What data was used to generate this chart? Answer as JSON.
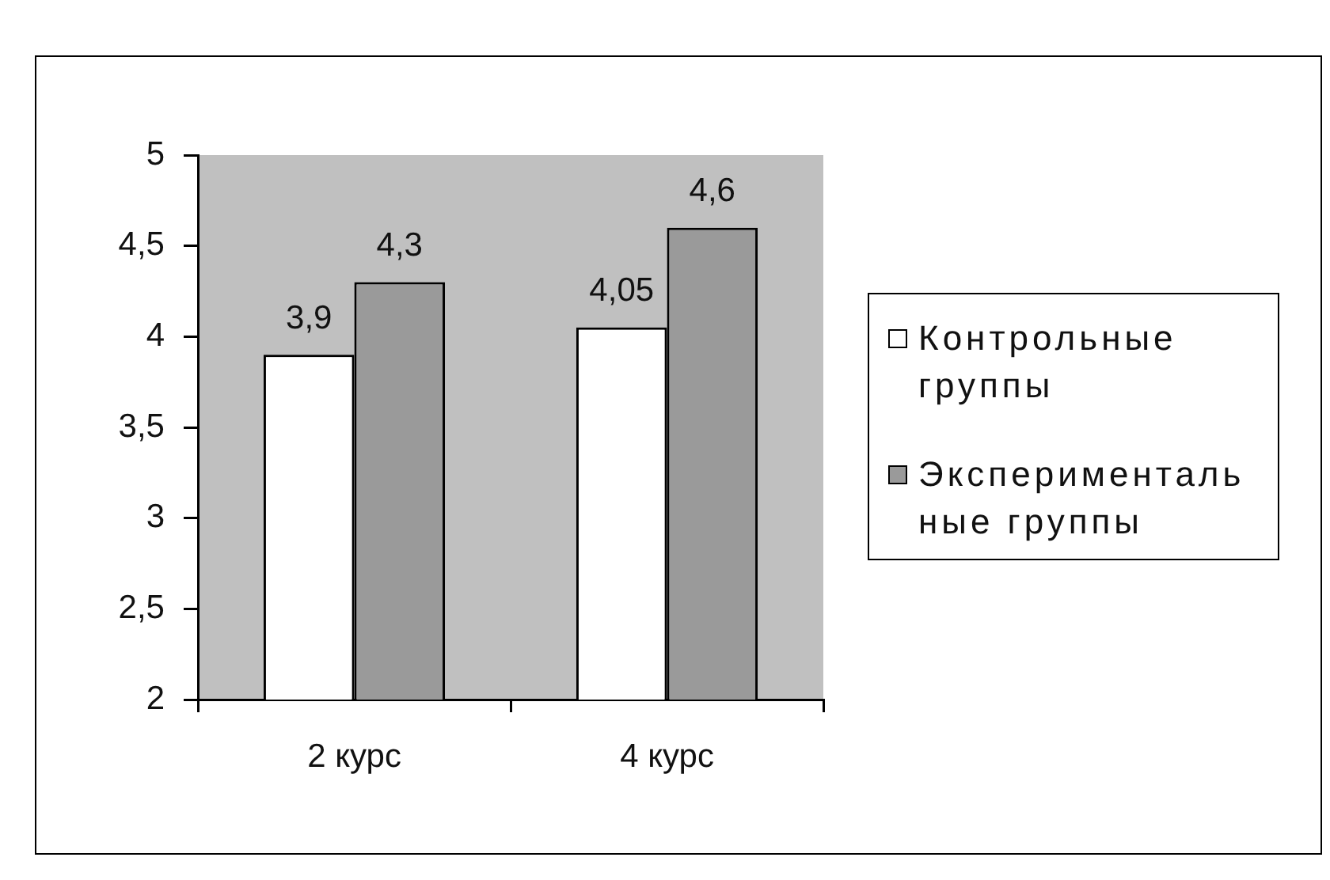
{
  "chart_data": {
    "type": "bar",
    "categories": [
      "2 курс",
      "4 курс"
    ],
    "series": [
      {
        "name": "Контрольные группы",
        "color": "#ffffff",
        "values": [
          3.9,
          4.05
        ],
        "value_labels": [
          "3,9",
          "4,05"
        ]
      },
      {
        "name": "Экспериментальные группы",
        "color": "#9a9a9a",
        "values": [
          4.3,
          4.6
        ],
        "value_labels": [
          "4,3",
          "4,6"
        ]
      }
    ],
    "ylim": [
      2,
      5
    ],
    "yticks": [
      2,
      {
        "value": 2.5,
        "label": "2,5"
      },
      3,
      {
        "value": 3.5,
        "label": "3,5"
      },
      4,
      {
        "value": 4.5,
        "label": "4,5"
      },
      5
    ],
    "grid": false,
    "legend": "right"
  }
}
